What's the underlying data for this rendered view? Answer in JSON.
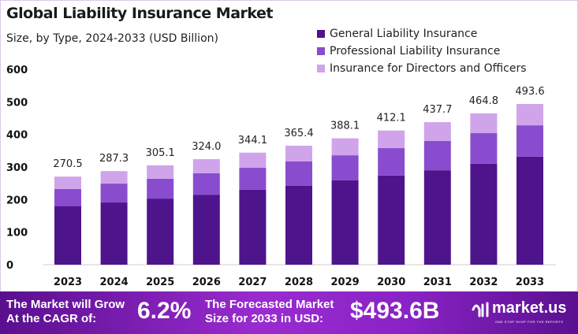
{
  "chart_data": {
    "type": "bar",
    "stacked": true,
    "title": "Global Liability Insurance Market",
    "subtitle": "Size, by Type, 2024-2033 (USD Billion)",
    "categories": [
      "2023",
      "2024",
      "2025",
      "2026",
      "2027",
      "2028",
      "2029",
      "2030",
      "2031",
      "2032",
      "2033"
    ],
    "series": [
      {
        "name": "General Liability Insurance",
        "color": "#4e148c",
        "values": [
          180,
          191,
          203,
          215,
          230,
          242,
          259,
          274,
          290,
          310,
          332
        ]
      },
      {
        "name": "Professional Liability Insurance",
        "color": "#8a4ccf",
        "values": [
          52.5,
          58,
          61,
          66,
          68,
          75,
          77,
          84,
          90,
          94,
          96
        ]
      },
      {
        "name": "Insurance for Directors and Officers",
        "color": "#cfa4ea",
        "values": [
          38,
          38.3,
          41.1,
          43,
          46.1,
          48.4,
          52.1,
          54.1,
          57.7,
          60.8,
          65.6
        ]
      }
    ],
    "totals": [
      "270.5",
      "287.3",
      "305.1",
      "324.0",
      "344.1",
      "365.4",
      "388.1",
      "412.1",
      "437.7",
      "464.8",
      "493.6"
    ],
    "yticks": [
      "0",
      "100",
      "200",
      "300",
      "400",
      "500",
      "600"
    ],
    "ylim": [
      0,
      600
    ],
    "grid": false,
    "legend_position": "top-right"
  },
  "footer": {
    "cagr_text_1": "The Market will Grow",
    "cagr_text_2": "At the CAGR of:",
    "cagr_value": "6.2%",
    "forecast_text_1": "The Forecasted Market",
    "forecast_text_2": "Size for 2033 in USD:",
    "forecast_value": "$493.6B",
    "logo_name": "market.us",
    "logo_tagline": "ONE STOP SHOP FOR THE REPORTS"
  }
}
